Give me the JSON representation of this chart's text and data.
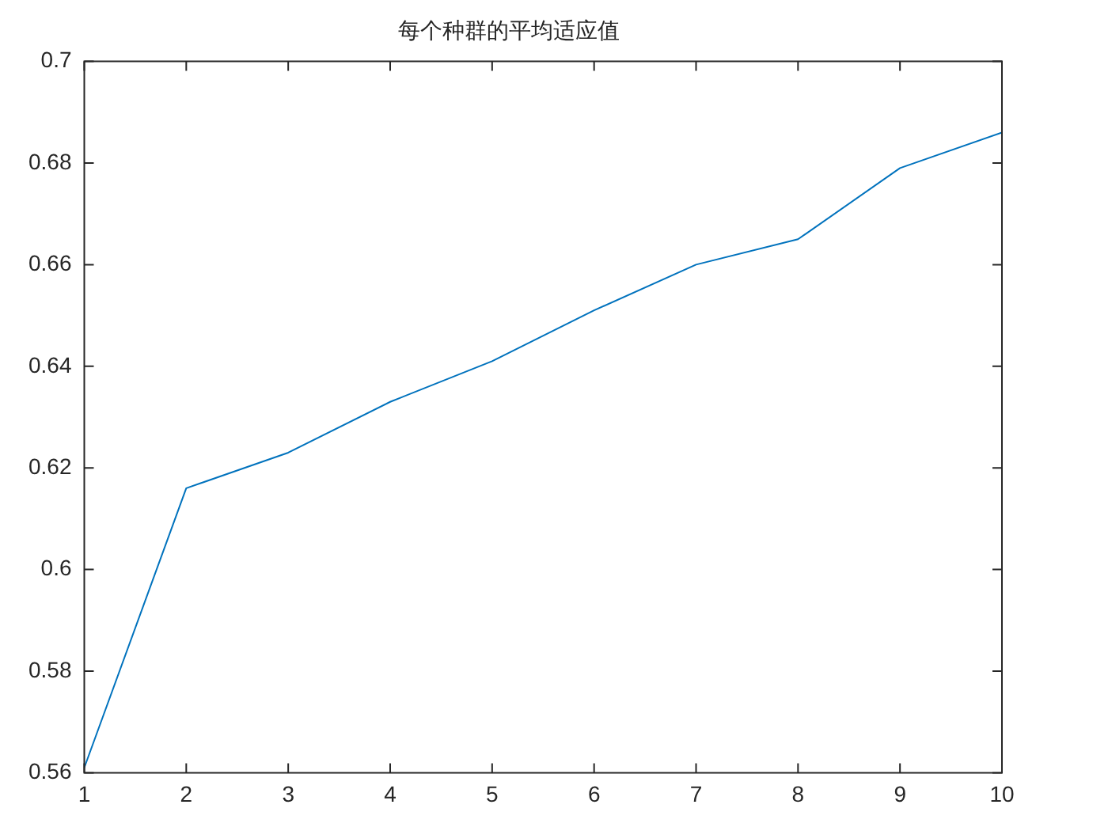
{
  "chart_data": {
    "type": "line",
    "title": "每个种群的平均适应值",
    "x": [
      1,
      2,
      3,
      4,
      5,
      6,
      7,
      8,
      9,
      10
    ],
    "series": [
      {
        "color": "#0072bd",
        "values": [
          0.561,
          0.616,
          0.623,
          0.633,
          0.641,
          0.651,
          0.66,
          0.665,
          0.679,
          0.686
        ]
      }
    ],
    "xlim": [
      1,
      10
    ],
    "xticks": [
      1,
      2,
      3,
      4,
      5,
      6,
      7,
      8,
      9,
      10
    ],
    "ylim": [
      0.56,
      0.7
    ],
    "yticks": [
      0.56,
      0.58,
      0.6,
      0.62,
      0.64,
      0.66,
      0.68,
      0.7
    ],
    "grid": false,
    "legend": false,
    "marker": "none",
    "line_style": "solid"
  }
}
